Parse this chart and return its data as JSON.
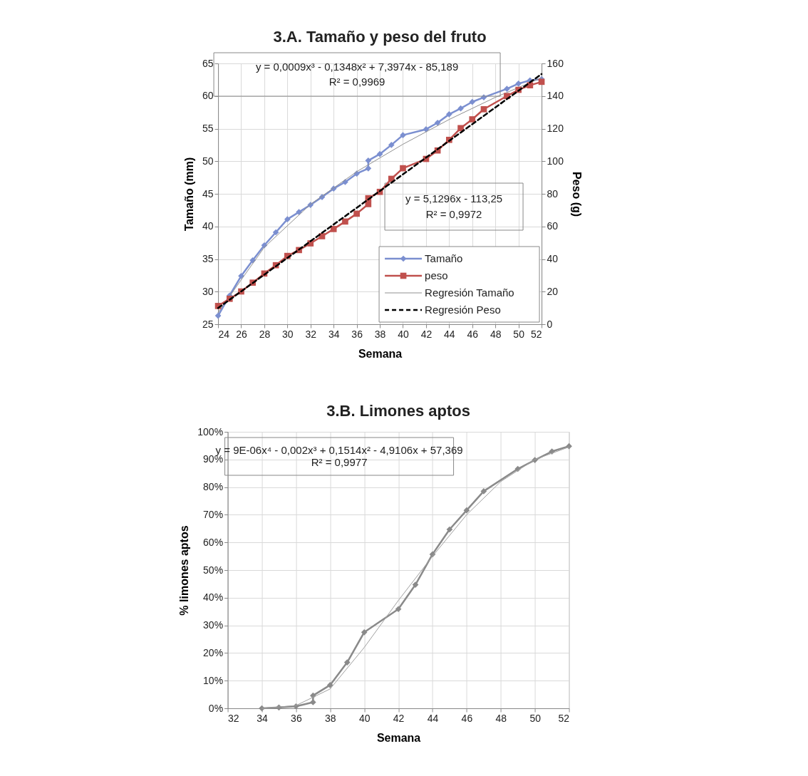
{
  "chart_data": [
    {
      "type": "line",
      "title": "3.A. Tamaño y peso del fruto",
      "xlabel": "Semana",
      "ylabel": "Tamaño (mm)",
      "y2label": "Peso (g)",
      "xlim": [
        24,
        52
      ],
      "xticks": [
        24,
        26,
        28,
        30,
        32,
        34,
        36,
        38,
        40,
        42,
        44,
        46,
        48,
        50,
        52
      ],
      "ylim": [
        25,
        65
      ],
      "yticks": [
        25,
        30,
        35,
        40,
        45,
        50,
        55,
        60,
        65
      ],
      "y2lim": [
        0,
        160
      ],
      "y2ticks": [
        0,
        20,
        40,
        60,
        80,
        100,
        120,
        140,
        160
      ],
      "grid": true,
      "legend": "bottom right",
      "annotations": [
        "y = 0,0009x³ - 0,1348x² + 7,3974x - 85,189",
        "R² = 0,9969",
        "y = 5,1296x - 113,25",
        "R² = 0,9972"
      ],
      "series": [
        {
          "name": "Tamaño",
          "color": "#7b8fd0",
          "marker": "diamond",
          "x": [
            24,
            25,
            26,
            27,
            28,
            29,
            30,
            31,
            32,
            33,
            34,
            35,
            36,
            37,
            37,
            38,
            39,
            40,
            42,
            43,
            44,
            45,
            46,
            47,
            49,
            50,
            51,
            52
          ],
          "values": [
            26.3,
            29.4,
            32.4,
            34.8,
            37.1,
            39.1,
            41.1,
            42.2,
            43.3,
            44.5,
            45.8,
            46.8,
            48.1,
            48.9,
            50.1,
            51.1,
            52.5,
            54.0,
            54.9,
            55.9,
            57.2,
            58.1,
            59.1,
            59.8,
            61.1,
            61.9,
            62.4,
            62.6
          ]
        },
        {
          "name": "peso",
          "color": "#c0504d",
          "marker": "square",
          "axis": "y2",
          "x": [
            24,
            25,
            26,
            27,
            28,
            29,
            30,
            31,
            32,
            33,
            34,
            35,
            36,
            37,
            37,
            38,
            39,
            40,
            42,
            43,
            44,
            45,
            46,
            47,
            49,
            50,
            51,
            52
          ],
          "values": [
            11.2,
            15.6,
            20.1,
            25.5,
            31.1,
            36.2,
            41.9,
            45.5,
            49.6,
            54.0,
            58.4,
            63.0,
            67.8,
            73.7,
            77.3,
            81.2,
            89.2,
            95.7,
            101.4,
            106.6,
            113.1,
            120.3,
            125.7,
            131.9,
            140.0,
            143.8,
            146.6,
            148.7
          ]
        },
        {
          "name": "Regresión Tamaño",
          "color": "#909090",
          "marker": "none",
          "x": [
            24,
            28,
            32,
            36,
            40,
            44,
            48,
            52
          ],
          "values": [
            26.8,
            36.8,
            43.4,
            48.4,
            52.6,
            56.4,
            59.8,
            62.8
          ]
        },
        {
          "name": "Regresión Peso",
          "color": "#000000",
          "marker": "none",
          "line_style": "dashed",
          "axis": "y2",
          "x": [
            24,
            52
          ],
          "values": [
            9.9,
            153.5
          ]
        }
      ]
    },
    {
      "type": "line",
      "title": "3.B. Limones aptos",
      "xlabel": "Semana",
      "ylabel": "% limones aptos",
      "xlim": [
        32,
        52
      ],
      "xticks": [
        32,
        34,
        36,
        38,
        40,
        42,
        44,
        46,
        48,
        50,
        52
      ],
      "ylim": [
        0,
        100
      ],
      "yticks": [
        {
          "value": 0,
          "label": "0%"
        },
        {
          "value": 10,
          "label": "10%"
        },
        {
          "value": 20,
          "label": "20%"
        },
        {
          "value": 30,
          "label": "30%"
        },
        {
          "value": 40,
          "label": "40%"
        },
        {
          "value": 50,
          "label": "50%"
        },
        {
          "value": 60,
          "label": "60%"
        },
        {
          "value": 70,
          "label": "70%"
        },
        {
          "value": 80,
          "label": "80%"
        },
        {
          "value": 90,
          "label": "90%"
        },
        {
          "value": 100,
          "label": "100%"
        }
      ],
      "grid": true,
      "annotations": [
        "y = 9E-06x⁴ - 0,002x³ + 0,1514x² - 4,9106x + 57,369",
        "R² = 0,9977"
      ],
      "series": [
        {
          "color": "#8a8a8a",
          "marker": "diamond",
          "x": [
            34,
            35,
            36,
            37,
            37,
            38,
            39,
            40,
            42,
            43,
            44,
            45,
            46,
            47,
            49,
            50,
            51,
            52
          ],
          "values": [
            0,
            0.3,
            0.7,
            2.2,
            4.6,
            8.4,
            16.6,
            27.5,
            35.9,
            44.7,
            55.7,
            64.7,
            71.6,
            78.5,
            86.6,
            89.8,
            92.9,
            94.8
          ]
        },
        {
          "color": "#a0a0a0",
          "marker": "none",
          "x": [
            34,
            36,
            38,
            40,
            42,
            44,
            46,
            48,
            50,
            52
          ],
          "values": [
            0,
            1,
            7,
            22,
            39,
            55,
            70,
            82,
            90,
            94.5
          ]
        }
      ]
    }
  ]
}
